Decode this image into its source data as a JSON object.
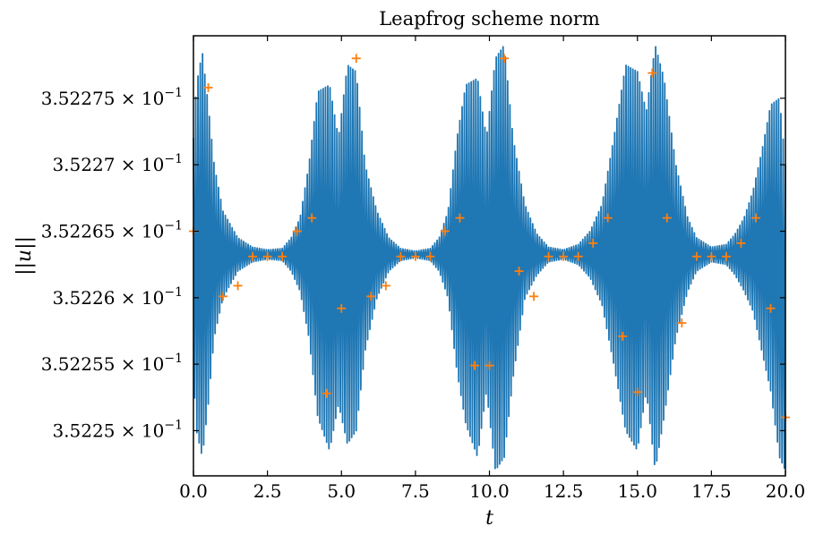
{
  "chart_data": {
    "type": "line",
    "title": "Leapfrog scheme norm",
    "xlabel": "t",
    "ylabel": "||u||",
    "xlim": [
      0,
      20
    ],
    "ylim": [
      0.3522466,
      0.3522797
    ],
    "x_ticks": [
      0,
      2.5,
      5,
      7.5,
      10,
      12.5,
      15,
      17.5,
      20
    ],
    "x_tick_labels": [
      "0.0",
      "2.5",
      "5.0",
      "7.5",
      "10.0",
      "12.5",
      "15.0",
      "17.5",
      "20.0"
    ],
    "y_ticks": [
      0.35225,
      0.352255,
      0.35226,
      0.352265,
      0.35227,
      0.352275
    ],
    "y_tick_labels": [
      {
        "mantissa": "3.5225",
        "base": "10",
        "exp": "−1"
      },
      {
        "mantissa": "3.52255",
        "base": "10",
        "exp": "−1"
      },
      {
        "mantissa": "3.5226",
        "base": "10",
        "exp": "−1"
      },
      {
        "mantissa": "3.52265",
        "base": "10",
        "exp": "−1"
      },
      {
        "mantissa": "3.5227",
        "base": "10",
        "exp": "−1"
      },
      {
        "mantissa": "3.52275",
        "base": "10",
        "exp": "−1"
      }
    ],
    "grid": false,
    "series": [
      {
        "color": "#1f77b4",
        "kind": "oscillation",
        "center": 0.3522632,
        "envelope": {
          "t": [
            0,
            0.1,
            0.3,
            0.5,
            0.7,
            1.0,
            1.5,
            2.0,
            2.5,
            3.0,
            3.3,
            3.6,
            3.9,
            4.2,
            4.6,
            4.9,
            5.2,
            5.5,
            5.8,
            6.2,
            6.6,
            7.0,
            7.5,
            8.0,
            8.3,
            8.6,
            8.9,
            9.2,
            9.6,
            9.9,
            10.2,
            10.5,
            10.8,
            11.2,
            11.6,
            12.0,
            12.5,
            13.0,
            13.4,
            13.8,
            14.2,
            14.6,
            15.0,
            15.3,
            15.6,
            15.9,
            16.3,
            16.7,
            17.0,
            17.5,
            18.0,
            18.3,
            18.6,
            18.9,
            19.2,
            19.5,
            19.8,
            20.0
          ],
          "upper": [
            0.352272,
            0.352276,
            0.3522785,
            0.3522745,
            0.35227,
            0.3522665,
            0.3522645,
            0.3522638,
            0.3522636,
            0.3522637,
            0.3522645,
            0.352266,
            0.35227,
            0.3522755,
            0.352276,
            0.352272,
            0.3522775,
            0.352277,
            0.35227,
            0.3522665,
            0.3522645,
            0.3522637,
            0.3522635,
            0.3522637,
            0.3522645,
            0.3522665,
            0.352272,
            0.352276,
            0.3522765,
            0.352272,
            0.352278,
            0.352279,
            0.352272,
            0.352267,
            0.3522648,
            0.3522638,
            0.3522636,
            0.352264,
            0.352265,
            0.352267,
            0.352272,
            0.3522775,
            0.352277,
            0.352274,
            0.352279,
            0.3522765,
            0.35227,
            0.352266,
            0.3522645,
            0.3522638,
            0.352264,
            0.3522648,
            0.352266,
            0.352268,
            0.352271,
            0.3522745,
            0.352275,
            0.35227
          ],
          "lower": [
            0.352254,
            0.35225,
            0.352248,
            0.352252,
            0.352257,
            0.35226,
            0.352262,
            0.3522627,
            0.3522629,
            0.3522628,
            0.352262,
            0.3522605,
            0.352257,
            0.352251,
            0.3522485,
            0.352252,
            0.352249,
            0.35225,
            0.352256,
            0.35226,
            0.352262,
            0.3522628,
            0.352263,
            0.3522628,
            0.352262,
            0.35226,
            0.3522545,
            0.3522505,
            0.352248,
            0.352253,
            0.352247,
            0.352248,
            0.352254,
            0.35226,
            0.3522617,
            0.3522627,
            0.3522629,
            0.3522625,
            0.3522615,
            0.3522595,
            0.352255,
            0.35225,
            0.3522485,
            0.352253,
            0.352247,
            0.352251,
            0.352257,
            0.3522605,
            0.352262,
            0.3522627,
            0.3522625,
            0.3522617,
            0.3522605,
            0.352259,
            0.352256,
            0.352253,
            0.352248,
            0.352247
          ]
        }
      },
      {
        "color": "#ff7f0e",
        "kind": "markers",
        "marker": "+",
        "x": [
          0.0,
          0.5,
          1.0,
          1.5,
          2.0,
          2.5,
          3.0,
          3.5,
          4.0,
          4.5,
          5.0,
          5.5,
          6.0,
          6.5,
          7.0,
          7.5,
          8.0,
          8.5,
          9.0,
          9.5,
          10.0,
          10.5,
          11.0,
          11.5,
          12.0,
          12.5,
          13.0,
          13.5,
          14.0,
          14.5,
          15.0,
          15.5,
          16.0,
          16.5,
          17.0,
          17.5,
          18.0,
          18.5,
          19.0,
          19.5,
          20.0
        ],
        "y": [
          0.352265,
          0.3522758,
          0.3522601,
          0.3522609,
          0.3522631,
          0.3522631,
          0.3522631,
          0.352265,
          0.352266,
          0.3522528,
          0.3522592,
          0.352278,
          0.3522601,
          0.3522609,
          0.3522631,
          0.3522631,
          0.3522631,
          0.352265,
          0.352266,
          0.3522549,
          0.3522549,
          0.352278,
          0.352262,
          0.3522601,
          0.3522631,
          0.3522631,
          0.3522631,
          0.3522641,
          0.352266,
          0.3522571,
          0.3522529,
          0.3522769,
          0.352266,
          0.3522581,
          0.3522631,
          0.3522631,
          0.3522631,
          0.3522641,
          0.352266,
          0.3522592,
          0.352251
        ]
      }
    ]
  }
}
